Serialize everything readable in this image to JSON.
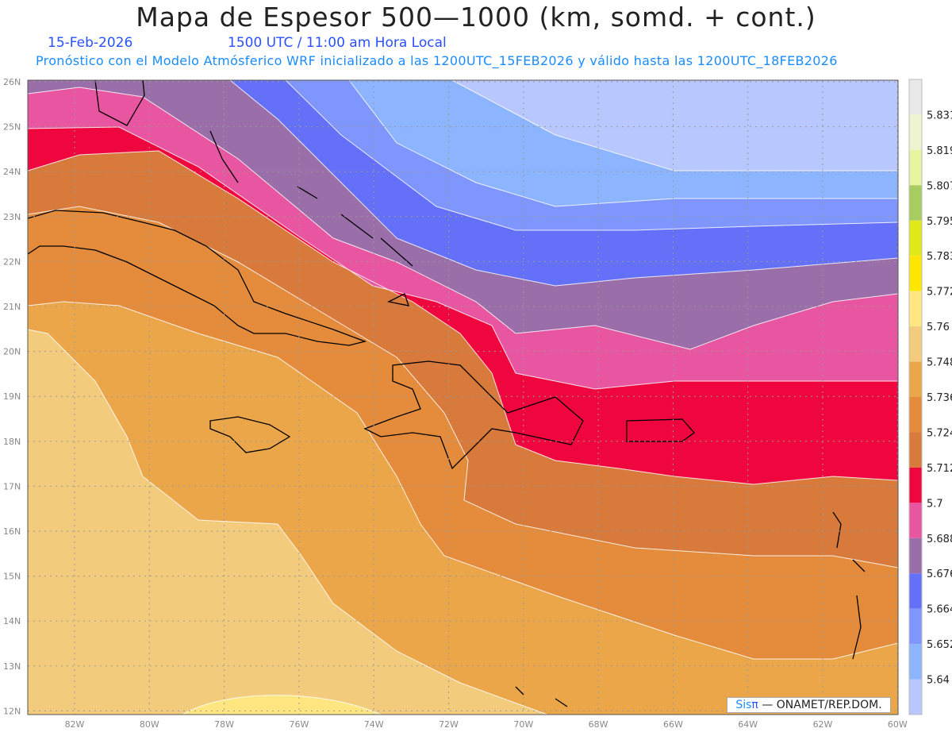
{
  "header": {
    "title": "Mapa de Espesor 500—1000 (km, somd. + cont.)",
    "date": "15-Feb-2026",
    "time": "1500 UTC / 11:00 am Hora Local",
    "forecast": "Pronóstico con el Modelo Atmósferico WRF inicializado a las 1200UTC_15FEB2026 y válido hasta las  1200UTC_18FEB2026"
  },
  "axes": {
    "lon_labels": [
      "82W",
      "80W",
      "78W",
      "76W",
      "74W",
      "72W",
      "70W",
      "68W",
      "66W",
      "64W",
      "62W",
      "60W"
    ],
    "lat_labels": [
      "26N",
      "25N",
      "24N",
      "23N",
      "22N",
      "21N",
      "20N",
      "19N",
      "18N",
      "17N",
      "16N",
      "15N",
      "14N",
      "13N",
      "12N"
    ]
  },
  "colorbar": {
    "labels": [
      "5.831",
      "5.819",
      "5.807",
      "5.795",
      "5.783",
      "5.772",
      "5.76",
      "5.748",
      "5.736",
      "5.724",
      "5.712",
      "5.7",
      "5.688",
      "5.676",
      "5.664",
      "5.652",
      "5.64"
    ],
    "colors": [
      "#e8e8e8",
      "#eef4d0",
      "#e8f4a0",
      "#a8cc60",
      "#e0e81a",
      "#ffe600",
      "#ffe680",
      "#f2cc7c",
      "#eca64a",
      "#e48c3c",
      "#d87a3c",
      "#f0063f",
      "#e855a0",
      "#9a6ea8",
      "#6470f8",
      "#7f96ff",
      "#8cb4ff",
      "#b8c8ff"
    ]
  },
  "credit": {
    "brand": "Sis",
    "pi": "π",
    "text": "—  ONAMET/REP.DOM."
  }
}
